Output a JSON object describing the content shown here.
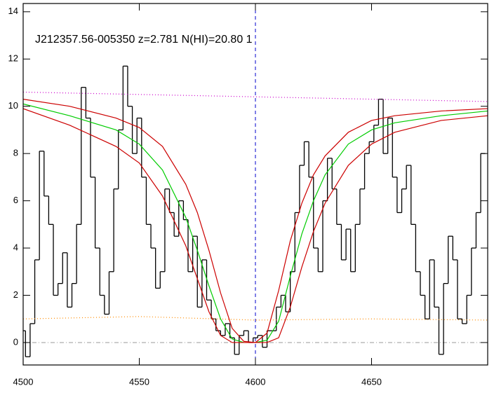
{
  "chart_data": {
    "type": "line",
    "title": "J212357.56-005350 z=2.781 N(HI)=20.80 1",
    "xlim": [
      4500,
      4700
    ],
    "ylim": [
      -0.95,
      14.35
    ],
    "xticks": [
      4500,
      4550,
      4600,
      4650
    ],
    "yticks": [
      0,
      2,
      4,
      6,
      8,
      10,
      12,
      14
    ],
    "hline": 0,
    "vline": 4600,
    "series": [
      {
        "color": "#000000",
        "style": "step",
        "x": [
          4500,
          4502,
          4504,
          4506,
          4508,
          4510,
          4512,
          4514,
          4516,
          4518,
          4520,
          4522,
          4524,
          4526,
          4528,
          4530,
          4532,
          4534,
          4536,
          4538,
          4540,
          4542,
          4544,
          4546,
          4548,
          4550,
          4552,
          4554,
          4556,
          4558,
          4560,
          4562,
          4564,
          4566,
          4568,
          4570,
          4572,
          4574,
          4576,
          4578,
          4580,
          4582,
          4584,
          4586,
          4588,
          4590,
          4592,
          4594,
          4596,
          4598,
          4600,
          4602,
          4604,
          4606,
          4608,
          4610,
          4612,
          4614,
          4616,
          4618,
          4620,
          4622,
          4624,
          4626,
          4628,
          4630,
          4632,
          4634,
          4636,
          4638,
          4640,
          4642,
          4644,
          4646,
          4648,
          4650,
          4652,
          4654,
          4656,
          4658,
          4660,
          4662,
          4664,
          4666,
          4668,
          4670,
          4672,
          4674,
          4676,
          4678,
          4680,
          4682,
          4684,
          4686,
          4688,
          4690,
          4692,
          4694,
          4696,
          4698
        ],
        "values": [
          0.5,
          -0.6,
          0.8,
          3.5,
          8.1,
          6.2,
          5,
          2,
          2.5,
          3.8,
          1.5,
          2.5,
          5,
          10.8,
          9.5,
          7,
          4,
          2,
          1.2,
          3,
          6.5,
          9,
          11.7,
          10,
          8,
          9.5,
          7,
          5,
          4,
          2.3,
          3,
          6.5,
          5.5,
          4.5,
          6,
          5.2,
          3,
          4.5,
          1.5,
          3.5,
          1.8,
          1,
          0.5,
          0.3,
          0.8,
          0.2,
          -0.5,
          0.3,
          0.5,
          0,
          0.2,
          0.3,
          -0.2,
          0.5,
          0.5,
          1.5,
          2,
          1.3,
          3,
          5.5,
          7.5,
          8.5,
          7,
          4,
          3,
          6,
          7.8,
          6.5,
          5,
          3.5,
          4.8,
          3,
          5,
          6.5,
          8,
          8.5,
          9.2,
          10.3,
          8,
          9.5,
          7,
          5.5,
          6.5,
          7.5,
          5,
          3,
          2,
          1,
          3.5,
          1.5,
          -0.5,
          2.5,
          4.5,
          3.5,
          1,
          0.8,
          2,
          4,
          5.5,
          8
        ]
      },
      {
        "color": "#cc00cc",
        "style": "dotted",
        "x": [
          4500,
          4700
        ],
        "values": [
          10.6,
          10.2
        ]
      },
      {
        "color": "#ff8c00",
        "style": "dotted",
        "x": [
          4500,
          4550,
          4600,
          4650,
          4700
        ],
        "values": [
          1.0,
          1.1,
          0.95,
          1.0,
          0.95
        ]
      },
      {
        "color": "#00cc00",
        "style": "solid",
        "x": [
          4500,
          4520,
          4540,
          4550,
          4560,
          4570,
          4575,
          4580,
          4585,
          4590,
          4595,
          4600,
          4605,
          4610,
          4615,
          4620,
          4625,
          4630,
          4640,
          4650,
          4660,
          4680,
          4700
        ],
        "values": [
          10.1,
          9.6,
          9.0,
          8.4,
          7.3,
          5.3,
          3.9,
          2.4,
          1.0,
          0.15,
          0,
          0,
          0.1,
          0.9,
          2.8,
          4.6,
          6.0,
          7.1,
          8.4,
          9.0,
          9.3,
          9.6,
          9.8
        ]
      },
      {
        "color": "#cc0000",
        "style": "solid",
        "x": [
          4500,
          4520,
          4540,
          4550,
          4560,
          4570,
          4575,
          4580,
          4585,
          4590,
          4595,
          4600,
          4605,
          4610,
          4615,
          4620,
          4625,
          4630,
          4640,
          4650,
          4660,
          4680,
          4700
        ],
        "values": [
          10.3,
          10.0,
          9.5,
          9.1,
          8.3,
          6.7,
          5.5,
          3.9,
          2.1,
          0.6,
          0.05,
          0,
          0.4,
          2.2,
          4.3,
          5.9,
          7.1,
          7.9,
          8.9,
          9.4,
          9.6,
          9.8,
          9.9
        ]
      },
      {
        "color": "#cc0000",
        "style": "solid",
        "x": [
          4500,
          4520,
          4540,
          4550,
          4560,
          4570,
          4575,
          4580,
          4585,
          4590,
          4595,
          4600,
          4605,
          4610,
          4615,
          4620,
          4625,
          4630,
          4640,
          4650,
          4660,
          4680,
          4700
        ],
        "values": [
          9.9,
          9.2,
          8.3,
          7.6,
          6.2,
          4.1,
          2.7,
          1.3,
          0.3,
          0,
          0,
          0,
          0,
          0.2,
          1.5,
          3.2,
          4.7,
          5.9,
          7.5,
          8.4,
          8.9,
          9.4,
          9.6
        ]
      }
    ]
  }
}
